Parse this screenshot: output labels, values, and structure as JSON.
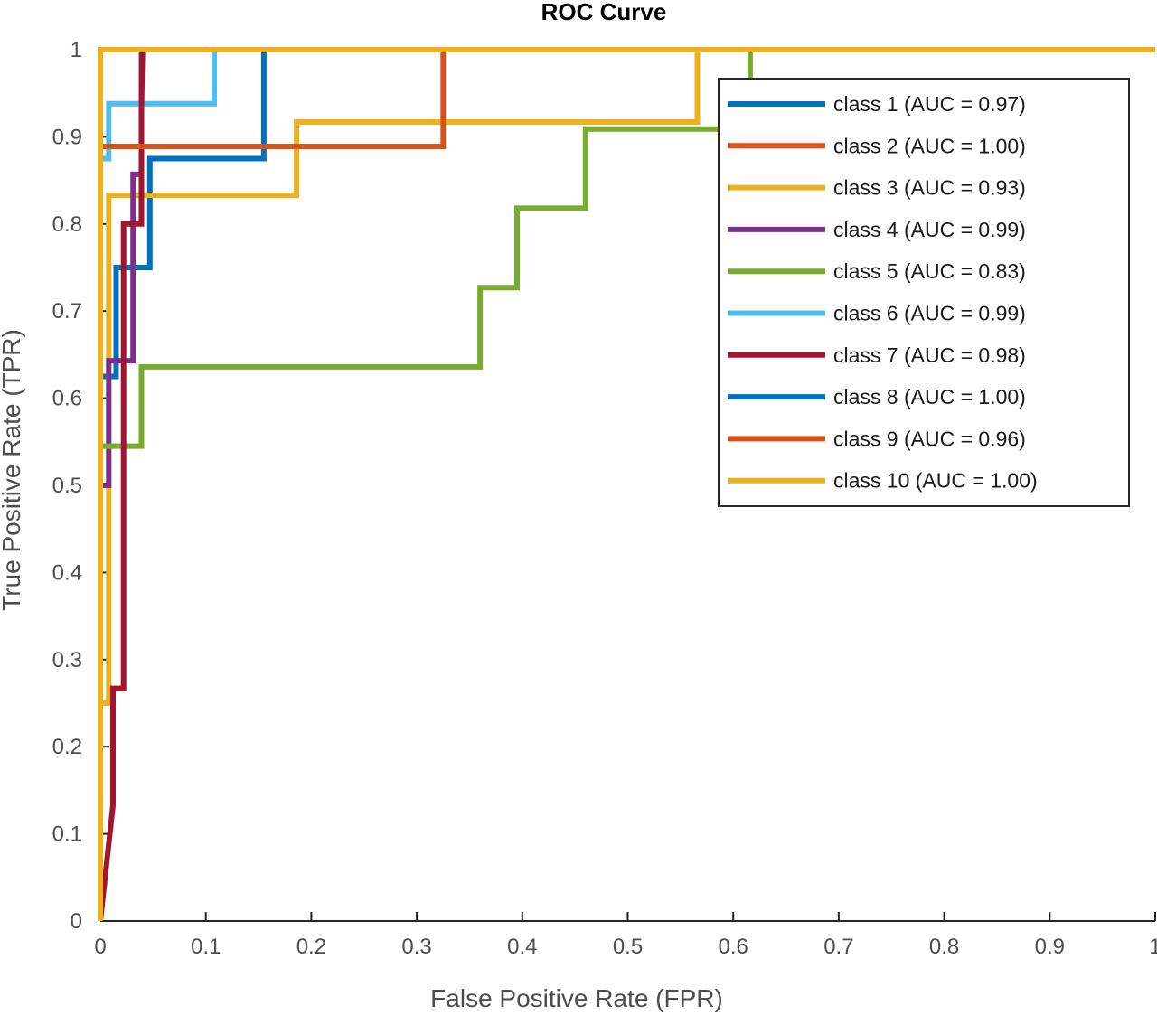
{
  "chart_data": {
    "type": "line",
    "title": "ROC Curve",
    "xlabel": "False Positive Rate (FPR)",
    "ylabel": "True Positive Rate (TPR)",
    "xlim": [
      0,
      1
    ],
    "ylim": [
      0,
      1
    ],
    "grid": false,
    "legend_position": "top-right",
    "x_ticks": [
      {
        "value": 0,
        "label": "0"
      },
      {
        "value": 0.1,
        "label": "0.1"
      },
      {
        "value": 0.2,
        "label": "0.2"
      },
      {
        "value": 0.3,
        "label": "0.3"
      },
      {
        "value": 0.4,
        "label": "0.4"
      },
      {
        "value": 0.5,
        "label": "0.5"
      },
      {
        "value": 0.6,
        "label": "0.6"
      },
      {
        "value": 0.7,
        "label": "0.7"
      },
      {
        "value": 0.8,
        "label": "0.8"
      },
      {
        "value": 0.9,
        "label": "0.9"
      },
      {
        "value": 1,
        "label": "1"
      }
    ],
    "y_ticks": [
      {
        "value": 0,
        "label": "0"
      },
      {
        "value": 0.1,
        "label": "0.1"
      },
      {
        "value": 0.2,
        "label": "0.2"
      },
      {
        "value": 0.3,
        "label": "0.3"
      },
      {
        "value": 0.4,
        "label": "0.4"
      },
      {
        "value": 0.5,
        "label": "0.5"
      },
      {
        "value": 0.6,
        "label": "0.6"
      },
      {
        "value": 0.7,
        "label": "0.7"
      },
      {
        "value": 0.8,
        "label": "0.8"
      },
      {
        "value": 0.9,
        "label": "0.9"
      },
      {
        "value": 1,
        "label": "1"
      }
    ],
    "series": [
      {
        "name": "class 1 (AUC = 0.97)",
        "color": "#0072BD",
        "x": [
          0,
          0,
          0.015,
          0.015,
          0.047,
          0.047,
          0.155,
          0.155,
          1
        ],
        "y": [
          0,
          0.625,
          0.625,
          0.75,
          0.75,
          0.875,
          0.875,
          1,
          1
        ]
      },
      {
        "name": "class 2 (AUC = 1.00)",
        "color": "#D95319",
        "x": [
          0,
          0,
          1
        ],
        "y": [
          0,
          1,
          1
        ]
      },
      {
        "name": "class 3 (AUC = 0.93)",
        "color": "#EDB120",
        "x": [
          0,
          0,
          0.008,
          0.008,
          0.186,
          0.186,
          0.566,
          0.566,
          1
        ],
        "y": [
          0,
          0.25,
          0.25,
          0.833,
          0.833,
          0.917,
          0.917,
          1,
          1
        ]
      },
      {
        "name": "class 4 (AUC = 0.99)",
        "color": "#7E2F8E",
        "x": [
          0,
          0.008,
          0.008,
          0.031,
          0.031,
          0.039,
          0.039,
          1
        ],
        "y": [
          0.5,
          0.5,
          0.643,
          0.643,
          0.857,
          0.857,
          1,
          1
        ]
      },
      {
        "name": "class 5 (AUC = 0.83)",
        "color": "#77AC30",
        "x": [
          0,
          0.039,
          0.039,
          0.36,
          0.36,
          0.395,
          0.395,
          0.46,
          0.46,
          0.616,
          0.616,
          1
        ],
        "y": [
          0.545,
          0.545,
          0.636,
          0.636,
          0.727,
          0.727,
          0.818,
          0.818,
          0.909,
          0.909,
          1,
          1
        ]
      },
      {
        "name": "class 6 (AUC = 0.99)",
        "color": "#4DBEEE",
        "x": [
          0,
          0.008,
          0.008,
          0.108,
          0.108,
          1
        ],
        "y": [
          0.875,
          0.875,
          0.938,
          0.938,
          1,
          1
        ]
      },
      {
        "name": "class 7 (AUC = 0.98)",
        "color": "#A2142F",
        "x": [
          0,
          0.012,
          0.012,
          0.022,
          0.022,
          0.039,
          0.039,
          0.04,
          1
        ],
        "y": [
          0,
          0.133,
          0.267,
          0.267,
          0.8,
          0.8,
          0.933,
          1,
          1
        ]
      },
      {
        "name": "class 8 (AUC = 1.00)",
        "color": "#0072BD",
        "x": [
          0,
          0,
          1
        ],
        "y": [
          0,
          1,
          1
        ]
      },
      {
        "name": "class 9 (AUC = 0.96)",
        "color": "#D95319",
        "x": [
          0,
          0,
          0.325,
          0.325,
          1
        ],
        "y": [
          0.889,
          0.889,
          0.889,
          1,
          1
        ]
      },
      {
        "name": "class 10 (AUC = 1.00)",
        "color": "#EDB120",
        "x": [
          0,
          0,
          1
        ],
        "y": [
          0,
          1,
          1
        ]
      }
    ]
  }
}
